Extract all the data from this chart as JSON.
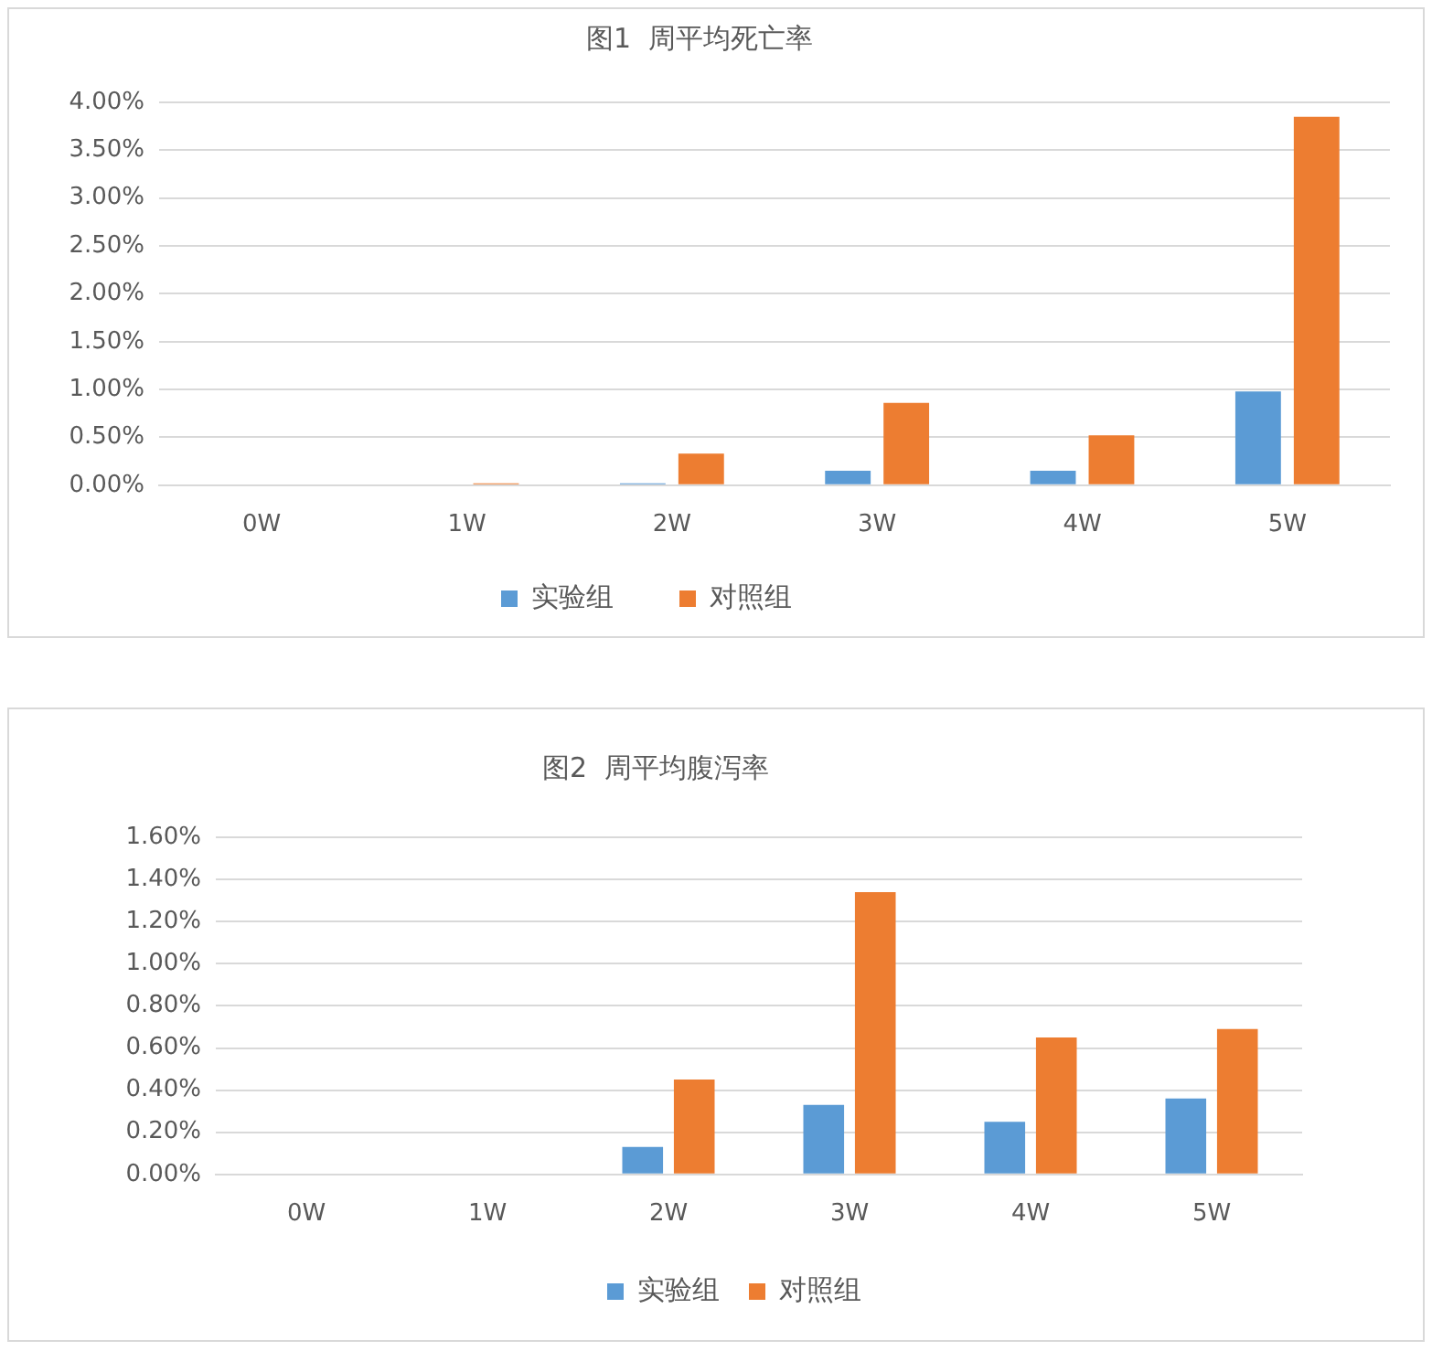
{
  "chart_data": [
    {
      "type": "bar",
      "title": "图1  周平均死亡率",
      "categories": [
        "0W",
        "1W",
        "2W",
        "3W",
        "4W",
        "5W"
      ],
      "series": [
        {
          "name": "实验组",
          "color": "#5b9bd5",
          "values": [
            0,
            0,
            0.02,
            0.15,
            0.15,
            0.98
          ]
        },
        {
          "name": "对照组",
          "color": "#ed7d31",
          "values": [
            0,
            0.02,
            0.33,
            0.86,
            0.52,
            3.85
          ]
        }
      ],
      "ylim": [
        0,
        4
      ],
      "yticks": [
        {
          "value": 0,
          "label": "0.00%"
        },
        {
          "value": 0.5,
          "label": "0.50%"
        },
        {
          "value": 1,
          "label": "1.00%"
        },
        {
          "value": 1.5,
          "label": "1.50%"
        },
        {
          "value": 2,
          "label": "2.00%"
        },
        {
          "value": 2.5,
          "label": "2.50%"
        },
        {
          "value": 3,
          "label": "3.00%"
        },
        {
          "value": 3.5,
          "label": "3.50%"
        },
        {
          "value": 4,
          "label": "4.00%"
        }
      ],
      "grid": "y",
      "legend": "bottom"
    },
    {
      "type": "bar",
      "title": "图2  周平均腹泻率",
      "categories": [
        "0W",
        "1W",
        "2W",
        "3W",
        "4W",
        "5W"
      ],
      "series": [
        {
          "name": "实验组",
          "color": "#5b9bd5",
          "values": [
            0,
            0,
            0.13,
            0.33,
            0.25,
            0.36
          ]
        },
        {
          "name": "对照组",
          "color": "#ed7d31",
          "values": [
            0,
            0,
            0.45,
            1.34,
            0.65,
            0.69
          ]
        }
      ],
      "ylim": [
        0,
        1.6
      ],
      "yticks": [
        {
          "value": 0,
          "label": "0.00%"
        },
        {
          "value": 0.2,
          "label": "0.20%"
        },
        {
          "value": 0.4,
          "label": "0.40%"
        },
        {
          "value": 0.6,
          "label": "0.60%"
        },
        {
          "value": 0.8,
          "label": "0.80%"
        },
        {
          "value": 1,
          "label": "1.00%"
        },
        {
          "value": 1.2,
          "label": "1.20%"
        },
        {
          "value": 1.4,
          "label": "1.40%"
        },
        {
          "value": 1.6,
          "label": "1.60%"
        }
      ],
      "grid": "y",
      "legend": "bottom"
    }
  ]
}
